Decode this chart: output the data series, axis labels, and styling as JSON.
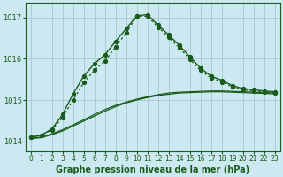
{
  "background_color": "#cce8f0",
  "grid_color": "#aaccd8",
  "line_color_dark": "#1a5c1a",
  "line_color_med": "#2d6e2d",
  "xlabel": "Graphe pression niveau de la mer (hPa)",
  "xlabel_fontsize": 7,
  "ylim": [
    1013.75,
    1017.35
  ],
  "xlim": [
    -0.5,
    23.5
  ],
  "yticks": [
    1014,
    1015,
    1016,
    1017
  ],
  "xticks": [
    0,
    1,
    2,
    3,
    4,
    5,
    6,
    7,
    8,
    9,
    10,
    11,
    12,
    13,
    14,
    15,
    16,
    17,
    18,
    19,
    20,
    21,
    22,
    23
  ],
  "flat1_x": [
    0,
    1,
    2,
    3,
    4,
    5,
    6,
    7,
    8,
    9,
    10,
    11,
    12,
    13,
    14,
    15,
    16,
    17,
    18,
    19,
    20,
    21,
    22,
    23
  ],
  "flat1_y": [
    1014.08,
    1014.1,
    1014.18,
    1014.28,
    1014.4,
    1014.52,
    1014.65,
    1014.77,
    1014.87,
    1014.95,
    1015.02,
    1015.08,
    1015.13,
    1015.17,
    1015.19,
    1015.2,
    1015.21,
    1015.22,
    1015.22,
    1015.21,
    1015.2,
    1015.19,
    1015.18,
    1015.17
  ],
  "flat2_x": [
    0,
    1,
    2,
    3,
    4,
    5,
    6,
    7,
    8,
    9,
    10,
    11,
    12,
    13,
    14,
    15,
    16,
    17,
    18,
    19,
    20,
    21,
    22,
    23
  ],
  "flat2_y": [
    1014.06,
    1014.09,
    1014.16,
    1014.25,
    1014.37,
    1014.49,
    1014.61,
    1014.73,
    1014.84,
    1014.93,
    1015.0,
    1015.06,
    1015.11,
    1015.14,
    1015.17,
    1015.18,
    1015.19,
    1015.2,
    1015.2,
    1015.19,
    1015.18,
    1015.17,
    1015.16,
    1015.15
  ],
  "peaked1_x": [
    0,
    1,
    2,
    3,
    4,
    5,
    6,
    7,
    8,
    9,
    10,
    11,
    12,
    13,
    14,
    15,
    16,
    17,
    18,
    19,
    20,
    21,
    22,
    23
  ],
  "peaked1_y": [
    1014.1,
    1014.15,
    1014.3,
    1014.65,
    1015.15,
    1015.58,
    1015.88,
    1016.1,
    1016.42,
    1016.73,
    1017.04,
    1017.07,
    1016.82,
    1016.58,
    1016.33,
    1016.05,
    1015.78,
    1015.58,
    1015.48,
    1015.35,
    1015.28,
    1015.25,
    1015.22,
    1015.2
  ],
  "peaked2_x": [
    0,
    1,
    2,
    3,
    4,
    5,
    6,
    7,
    8,
    9,
    10,
    11,
    12,
    13,
    14,
    15,
    16,
    17,
    18,
    19,
    20,
    21,
    22,
    23
  ],
  "peaked2_y": [
    1014.1,
    1014.15,
    1014.28,
    1014.58,
    1015.0,
    1015.42,
    1015.72,
    1015.95,
    1016.28,
    1016.63,
    1017.03,
    1017.03,
    1016.77,
    1016.52,
    1016.27,
    1015.99,
    1015.72,
    1015.54,
    1015.44,
    1015.32,
    1015.25,
    1015.22,
    1015.2,
    1015.18
  ]
}
